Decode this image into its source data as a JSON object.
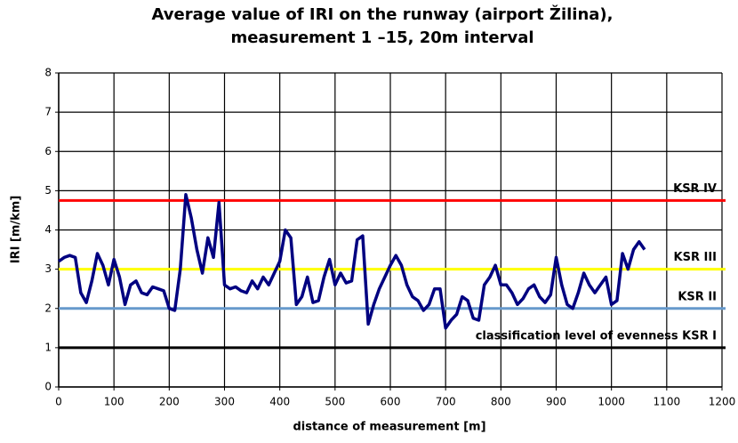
{
  "chart_data": {
    "type": "line",
    "title": [
      "Average value of IRI on the runway (airport Žilina),",
      "measurement 1 –15, 20m interval"
    ],
    "x_label": "distance of measurement [m]",
    "y_label": "IRI   [m/km]",
    "x": [
      0,
      10,
      20,
      30,
      40,
      50,
      60,
      70,
      80,
      90,
      100,
      110,
      120,
      130,
      140,
      150,
      160,
      170,
      180,
      190,
      200,
      210,
      220,
      230,
      240,
      250,
      260,
      270,
      280,
      290,
      300,
      310,
      320,
      330,
      340,
      350,
      360,
      370,
      380,
      390,
      400,
      410,
      420,
      430,
      440,
      450,
      460,
      470,
      480,
      490,
      500,
      510,
      520,
      530,
      540,
      550,
      560,
      570,
      580,
      590,
      600,
      610,
      620,
      630,
      640,
      650,
      660,
      670,
      680,
      690,
      700,
      710,
      720,
      730,
      740,
      750,
      760,
      770,
      780,
      790,
      800,
      810,
      820,
      830,
      840,
      850,
      860,
      870,
      880,
      890,
      900,
      910,
      920,
      930,
      940,
      950,
      960,
      970,
      980,
      990,
      1000,
      1010,
      1020,
      1030,
      1040,
      1050,
      1060
    ],
    "series": [
      {
        "color": "#000080",
        "values": [
          3.2,
          3.3,
          3.35,
          3.3,
          2.4,
          2.15,
          2.7,
          3.4,
          3.1,
          2.6,
          3.25,
          2.8,
          2.1,
          2.6,
          2.7,
          2.4,
          2.35,
          2.55,
          2.5,
          2.45,
          2.0,
          1.95,
          3.0,
          4.9,
          4.3,
          3.5,
          2.9,
          3.8,
          3.3,
          4.7,
          2.6,
          2.5,
          2.55,
          2.45,
          2.4,
          2.7,
          2.5,
          2.8,
          2.6,
          2.9,
          3.2,
          4.0,
          3.8,
          2.1,
          2.3,
          2.8,
          2.15,
          2.2,
          2.8,
          3.25,
          2.6,
          2.9,
          2.65,
          2.7,
          3.75,
          3.85,
          1.6,
          2.1,
          2.5,
          2.8,
          3.1,
          3.35,
          3.1,
          2.6,
          2.3,
          2.2,
          1.95,
          2.1,
          2.5,
          2.5,
          1.5,
          1.7,
          1.85,
          2.3,
          2.2,
          1.75,
          1.7,
          2.6,
          2.8,
          3.1,
          2.6,
          2.6,
          2.4,
          2.1,
          2.25,
          2.5,
          2.6,
          2.3,
          2.15,
          2.35,
          3.3,
          2.6,
          2.1,
          2.0,
          2.4,
          2.9,
          2.6,
          2.4,
          2.6,
          2.8,
          2.1,
          2.2,
          3.4,
          3.0,
          3.5,
          3.7,
          3.5
        ]
      }
    ],
    "reference_lines": [
      {
        "label": "KSR IV",
        "value": 4.75,
        "color": "#ff0000"
      },
      {
        "label": "KSR III",
        "value": 3.0,
        "color": "#ffff00"
      },
      {
        "label": "KSR II",
        "value": 2.0,
        "color": "#6699cc"
      },
      {
        "label": "classification level of evenness  KSR I",
        "value": 1,
        "color": "#000000"
      }
    ],
    "xlim": [
      0,
      1200
    ],
    "xticks": [
      0,
      100,
      200,
      300,
      400,
      500,
      600,
      700,
      800,
      900,
      1000,
      1100,
      1200
    ],
    "ylim": [
      0,
      8
    ],
    "yticks": [
      0,
      1,
      2,
      3,
      4,
      5,
      6,
      7,
      8
    ],
    "grid": true
  }
}
